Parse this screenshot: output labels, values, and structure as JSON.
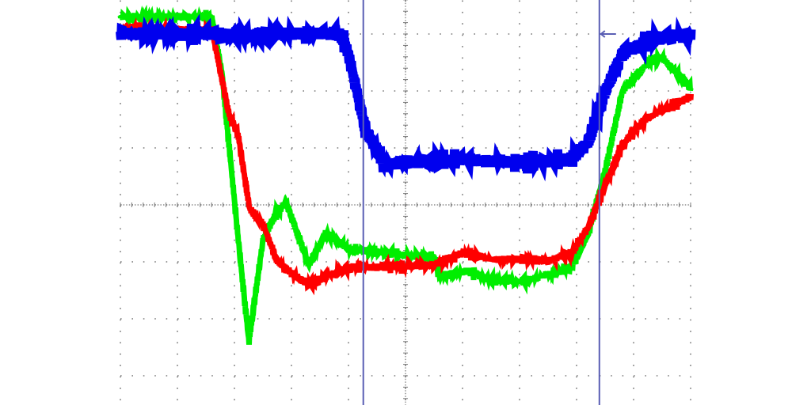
{
  "chart_data": {
    "type": "line",
    "title": "",
    "xlabel": "",
    "ylabel": "",
    "x_divisions": [
      0,
      10
    ],
    "ylim_divisions": [
      -3.5,
      3.6
    ],
    "grid": true,
    "grid_style": "dotted",
    "background": "#ffffff",
    "cursors": {
      "color": "#5a5fb4",
      "x": [
        4.26,
        8.4
      ]
    },
    "level_marker": {
      "color": "#5a5fb4",
      "x": 8.4,
      "y": 3.0,
      "direction": "left"
    },
    "series": [
      {
        "color": "#00ee00",
        "noise": 0.07,
        "points": [
          [
            0,
            3.3
          ],
          [
            1.6,
            3.3
          ],
          [
            1.78,
            2.3
          ],
          [
            2.06,
            -0.57
          ],
          [
            2.25,
            -2.4
          ],
          [
            2.5,
            -0.6
          ],
          [
            2.7,
            -0.2
          ],
          [
            2.9,
            0.05
          ],
          [
            3.1,
            -0.5
          ],
          [
            3.3,
            -1.05
          ],
          [
            3.6,
            -0.5
          ],
          [
            4.0,
            -0.78
          ],
          [
            5.0,
            -0.88
          ],
          [
            5.5,
            -0.92
          ],
          [
            5.6,
            -1.26
          ],
          [
            6.1,
            -1.15
          ],
          [
            6.4,
            -1.3
          ],
          [
            7.0,
            -1.35
          ],
          [
            7.6,
            -1.2
          ],
          [
            7.9,
            -1.1
          ],
          [
            8.2,
            -0.5
          ],
          [
            8.5,
            0.6
          ],
          [
            8.8,
            2.0
          ],
          [
            9.3,
            2.55
          ],
          [
            9.5,
            2.58
          ],
          [
            9.9,
            2.15
          ],
          [
            10,
            2.05
          ]
        ]
      },
      {
        "color": "#ff0000",
        "noise": 0.07,
        "points": [
          [
            0,
            3.08
          ],
          [
            1.6,
            3.08
          ],
          [
            1.9,
            1.6
          ],
          [
            2.06,
            1.24
          ],
          [
            2.26,
            -0.05
          ],
          [
            2.5,
            -0.35
          ],
          [
            2.75,
            -1.0
          ],
          [
            3.0,
            -1.2
          ],
          [
            3.3,
            -1.4
          ],
          [
            3.6,
            -1.25
          ],
          [
            4.0,
            -1.1
          ],
          [
            5.0,
            -1.08
          ],
          [
            5.5,
            -1.05
          ],
          [
            6.0,
            -0.85
          ],
          [
            6.5,
            -0.95
          ],
          [
            7.5,
            -0.98
          ],
          [
            7.9,
            -0.85
          ],
          [
            8.2,
            -0.4
          ],
          [
            8.5,
            0.35
          ],
          [
            8.8,
            1.05
          ],
          [
            9.2,
            1.5
          ],
          [
            9.6,
            1.7
          ],
          [
            10,
            1.9
          ]
        ]
      },
      {
        "color": "#0000ee",
        "noise": 0.12,
        "points": [
          [
            0,
            3.0
          ],
          [
            3.86,
            3.0
          ],
          [
            4.0,
            2.63
          ],
          [
            4.3,
            1.3
          ],
          [
            4.65,
            0.7
          ],
          [
            5.0,
            0.75
          ],
          [
            6.0,
            0.8
          ],
          [
            7.0,
            0.75
          ],
          [
            7.9,
            0.8
          ],
          [
            8.2,
            1.1
          ],
          [
            8.5,
            2.0
          ],
          [
            8.8,
            2.65
          ],
          [
            9.3,
            2.9
          ],
          [
            10,
            3.0
          ]
        ]
      }
    ]
  }
}
